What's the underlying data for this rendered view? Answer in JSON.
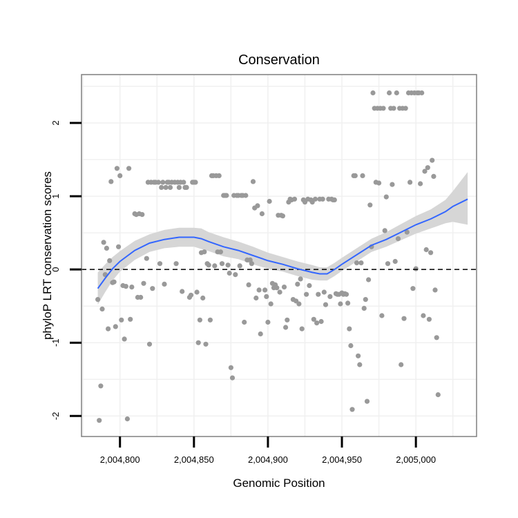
{
  "chart_data": {
    "type": "scatter",
    "title": "Conservation",
    "xlabel": "Genomic Position",
    "ylabel": "phyloP LRT conservation scores",
    "xlim": [
      2004774,
      2005041
    ],
    "ylim": [
      -2.28,
      2.66
    ],
    "x_ticks": [
      {
        "value": 2004800,
        "label": "2,004,800"
      },
      {
        "value": 2004850,
        "label": "2,004,850"
      },
      {
        "value": 2004900,
        "label": "2,004,900"
      },
      {
        "value": 2004950,
        "label": "2,004,950"
      },
      {
        "value": 2005000,
        "label": "2,005,000"
      }
    ],
    "y_ticks": [
      {
        "value": -2,
        "label": "-2"
      },
      {
        "value": -1,
        "label": "-1"
      },
      {
        "value": 0,
        "label": "0"
      },
      {
        "value": 1,
        "label": "1"
      },
      {
        "value": 2,
        "label": "2"
      }
    ],
    "grid": true,
    "reference_line": {
      "y": 0,
      "style": "dashed",
      "color": "#000000"
    },
    "points": [
      [
        2004785,
        -0.41
      ],
      [
        2004786,
        -2.06
      ],
      [
        2004787,
        -1.59
      ],
      [
        2004788,
        -0.54
      ],
      [
        2004789,
        0.37
      ],
      [
        2004790,
        -0.07
      ],
      [
        2004791,
        0.29
      ],
      [
        2004792,
        -0.81
      ],
      [
        2004793,
        0.12
      ],
      [
        2004794,
        1.2
      ],
      [
        2004795,
        -0.18
      ],
      [
        2004796,
        -0.17
      ],
      [
        2004797,
        -0.78
      ],
      [
        2004798,
        1.38
      ],
      [
        2004799,
        0.31
      ],
      [
        2004800,
        1.28
      ],
      [
        2004801,
        -0.69
      ],
      [
        2004802,
        -0.22
      ],
      [
        2004803,
        -0.95
      ],
      [
        2004804,
        -0.23
      ],
      [
        2004805,
        -2.04
      ],
      [
        2004806,
        1.38
      ],
      [
        2004807,
        -0.68
      ],
      [
        2004808,
        -0.24
      ],
      [
        2004810,
        0.76
      ],
      [
        2004811,
        0.75
      ],
      [
        2004812,
        -0.38
      ],
      [
        2004813,
        0.76
      ],
      [
        2004814,
        -0.38
      ],
      [
        2004815,
        0.75
      ],
      [
        2004816,
        -0.19
      ],
      [
        2004818,
        0.15
      ],
      [
        2004819,
        1.19
      ],
      [
        2004820,
        -1.02
      ],
      [
        2004821,
        1.19
      ],
      [
        2004822,
        -0.26
      ],
      [
        2004823,
        1.19
      ],
      [
        2004824,
        1.19
      ],
      [
        2004826,
        1.19
      ],
      [
        2004827,
        0.08
      ],
      [
        2004828,
        1.12
      ],
      [
        2004829,
        1.19
      ],
      [
        2004830,
        -0.2
      ],
      [
        2004831,
        1.12
      ],
      [
        2004832,
        1.19
      ],
      [
        2004833,
        1.19
      ],
      [
        2004834,
        1.12
      ],
      [
        2004835,
        1.19
      ],
      [
        2004837,
        1.19
      ],
      [
        2004838,
        0.08
      ],
      [
        2004839,
        1.19
      ],
      [
        2004840,
        1.12
      ],
      [
        2004841,
        1.19
      ],
      [
        2004842,
        -0.3
      ],
      [
        2004843,
        1.19
      ],
      [
        2004844,
        1.12
      ],
      [
        2004845,
        1.12
      ],
      [
        2004847,
        -0.38
      ],
      [
        2004848,
        -0.35
      ],
      [
        2004849,
        1.19
      ],
      [
        2004850,
        1.19
      ],
      [
        2004851,
        1.19
      ],
      [
        2004852,
        -0.31
      ],
      [
        2004853,
        -1.0
      ],
      [
        2004854,
        -0.69
      ],
      [
        2004855,
        0.23
      ],
      [
        2004856,
        -0.39
      ],
      [
        2004857,
        0.24
      ],
      [
        2004858,
        -1.02
      ],
      [
        2004859,
        0.08
      ],
      [
        2004860,
        0.06
      ],
      [
        2004861,
        -0.69
      ],
      [
        2004862,
        1.28
      ],
      [
        2004863,
        1.28
      ],
      [
        2004864,
        0.05
      ],
      [
        2004865,
        1.28
      ],
      [
        2004866,
        0.24
      ],
      [
        2004867,
        1.28
      ],
      [
        2004868,
        0.24
      ],
      [
        2004869,
        0.08
      ],
      [
        2004870,
        1.01
      ],
      [
        2004871,
        1.01
      ],
      [
        2004872,
        1.01
      ],
      [
        2004873,
        0.06
      ],
      [
        2004874,
        -0.05
      ],
      [
        2004875,
        -1.34
      ],
      [
        2004876,
        -1.48
      ],
      [
        2004877,
        1.01
      ],
      [
        2004878,
        -0.07
      ],
      [
        2004879,
        1.01
      ],
      [
        2004880,
        1.01
      ],
      [
        2004881,
        0.05
      ],
      [
        2004882,
        1.01
      ],
      [
        2004883,
        1.01
      ],
      [
        2004884,
        -0.72
      ],
      [
        2004885,
        1.01
      ],
      [
        2004886,
        0.13
      ],
      [
        2004887,
        -0.21
      ],
      [
        2004888,
        0.13
      ],
      [
        2004889,
        0.08
      ],
      [
        2004890,
        1.2
      ],
      [
        2004891,
        0.84
      ],
      [
        2004892,
        -0.39
      ],
      [
        2004893,
        0.87
      ],
      [
        2004894,
        -0.28
      ],
      [
        2004895,
        -0.88
      ],
      [
        2004896,
        0.76
      ],
      [
        2004898,
        -0.28
      ],
      [
        2004899,
        -0.37
      ],
      [
        2004900,
        -0.72
      ],
      [
        2004901,
        0.93
      ],
      [
        2004902,
        -0.47
      ],
      [
        2004903,
        -0.19
      ],
      [
        2004904,
        -0.25
      ],
      [
        2004905,
        -0.21
      ],
      [
        2004906,
        -0.25
      ],
      [
        2004907,
        0.74
      ],
      [
        2004908,
        -0.31
      ],
      [
        2004909,
        0.74
      ],
      [
        2004910,
        0.73
      ],
      [
        2004911,
        -0.24
      ],
      [
        2004912,
        -0.79
      ],
      [
        2004913,
        -0.69
      ],
      [
        2004914,
        0.92
      ],
      [
        2004915,
        0.96
      ],
      [
        2004916,
        0.95
      ],
      [
        2004917,
        -0.41
      ],
      [
        2004918,
        0.96
      ],
      [
        2004919,
        -0.43
      ],
      [
        2004920,
        -0.2
      ],
      [
        2004921,
        -0.47
      ],
      [
        2004922,
        -0.13
      ],
      [
        2004923,
        -0.81
      ],
      [
        2004924,
        0.95
      ],
      [
        2004925,
        0.92
      ],
      [
        2004926,
        -0.34
      ],
      [
        2004927,
        0.96
      ],
      [
        2004928,
        -0.22
      ],
      [
        2004929,
        0.95
      ],
      [
        2004930,
        0.92
      ],
      [
        2004931,
        -0.68
      ],
      [
        2004932,
        0.96
      ],
      [
        2004933,
        -0.73
      ],
      [
        2004934,
        -0.34
      ],
      [
        2004935,
        0.96
      ],
      [
        2004936,
        -0.71
      ],
      [
        2004937,
        0.96
      ],
      [
        2004938,
        -0.31
      ],
      [
        2004939,
        -0.48
      ],
      [
        2004941,
        0.96
      ],
      [
        2004942,
        -0.37
      ],
      [
        2004943,
        0.96
      ],
      [
        2004944,
        0.95
      ],
      [
        2004945,
        0.95
      ],
      [
        2004946,
        -0.33
      ],
      [
        2004947,
        -0.34
      ],
      [
        2004948,
        -0.34
      ],
      [
        2004949,
        -0.47
      ],
      [
        2004950,
        -0.32
      ],
      [
        2004951,
        -0.34
      ],
      [
        2004952,
        -0.33
      ],
      [
        2004953,
        -0.34
      ],
      [
        2004954,
        -0.46
      ],
      [
        2004955,
        -0.81
      ],
      [
        2004956,
        -1.04
      ],
      [
        2004957,
        -1.91
      ],
      [
        2004958,
        1.28
      ],
      [
        2004959,
        1.28
      ],
      [
        2004960,
        0.09
      ],
      [
        2004961,
        -1.18
      ],
      [
        2004962,
        -1.3
      ],
      [
        2004963,
        0.09
      ],
      [
        2004964,
        1.28
      ],
      [
        2004965,
        -0.53
      ],
      [
        2004966,
        -0.41
      ],
      [
        2004967,
        -1.8
      ],
      [
        2004968,
        -0.14
      ],
      [
        2004969,
        0.88
      ],
      [
        2004970,
        0.31
      ],
      [
        2004971,
        2.41
      ],
      [
        2004972,
        2.2
      ],
      [
        2004973,
        1.19
      ],
      [
        2004974,
        2.2
      ],
      [
        2004975,
        1.18
      ],
      [
        2004976,
        2.2
      ],
      [
        2004977,
        -0.63
      ],
      [
        2004978,
        2.2
      ],
      [
        2004979,
        0.53
      ],
      [
        2004980,
        0.99
      ],
      [
        2004981,
        0.08
      ],
      [
        2004982,
        2.41
      ],
      [
        2004983,
        2.2
      ],
      [
        2004984,
        1.16
      ],
      [
        2004985,
        2.2
      ],
      [
        2004986,
        0.11
      ],
      [
        2004987,
        2.41
      ],
      [
        2004988,
        0.42
      ],
      [
        2004989,
        2.2
      ],
      [
        2004990,
        -1.3
      ],
      [
        2004991,
        2.2
      ],
      [
        2004992,
        -0.67
      ],
      [
        2004993,
        2.2
      ],
      [
        2004994,
        0.51
      ],
      [
        2004995,
        2.41
      ],
      [
        2004996,
        1.19
      ],
      [
        2004997,
        2.41
      ],
      [
        2004998,
        -0.26
      ],
      [
        2004999,
        2.41
      ],
      [
        2005000,
        0.01
      ],
      [
        2005001,
        2.41
      ],
      [
        2005002,
        2.41
      ],
      [
        2005003,
        1.17
      ],
      [
        2005004,
        2.41
      ],
      [
        2005005,
        -0.63
      ],
      [
        2005006,
        1.34
      ],
      [
        2005007,
        0.27
      ],
      [
        2005008,
        1.39
      ],
      [
        2005009,
        -0.68
      ],
      [
        2005010,
        0.23
      ],
      [
        2005011,
        1.49
      ],
      [
        2005012,
        1.27
      ],
      [
        2005013,
        -0.28
      ],
      [
        2005014,
        -0.93
      ],
      [
        2005015,
        -1.71
      ]
    ],
    "smooth": {
      "color": "#3366ff",
      "band_color": "#d6d6d6",
      "x": [
        2004785,
        2004790,
        2004795,
        2004800,
        2004810,
        2004820,
        2004830,
        2004840,
        2004850,
        2004855,
        2004860,
        2004870,
        2004880,
        2004890,
        2004900,
        2004910,
        2004920,
        2004930,
        2004935,
        2004940,
        2004945,
        2004950,
        2004960,
        2004970,
        2004980,
        2004990,
        2005000,
        2005010,
        2005020,
        2005025,
        2005035
      ],
      "y": [
        -0.26,
        -0.12,
        0.01,
        0.11,
        0.26,
        0.36,
        0.41,
        0.44,
        0.44,
        0.42,
        0.38,
        0.31,
        0.26,
        0.19,
        0.12,
        0.07,
        0.01,
        -0.04,
        -0.06,
        -0.06,
        0.0,
        0.07,
        0.2,
        0.33,
        0.41,
        0.51,
        0.61,
        0.69,
        0.79,
        0.86,
        0.96
      ],
      "upper": [
        -0.04,
        0.07,
        0.17,
        0.25,
        0.39,
        0.48,
        0.54,
        0.57,
        0.57,
        0.56,
        0.51,
        0.44,
        0.38,
        0.31,
        0.23,
        0.17,
        0.11,
        0.06,
        0.03,
        0.03,
        0.09,
        0.16,
        0.29,
        0.42,
        0.51,
        0.62,
        0.73,
        0.82,
        0.95,
        1.07,
        1.33
      ],
      "lower": [
        -0.48,
        -0.31,
        -0.15,
        -0.03,
        0.13,
        0.24,
        0.29,
        0.31,
        0.31,
        0.28,
        0.25,
        0.18,
        0.14,
        0.07,
        0.01,
        -0.03,
        -0.09,
        -0.14,
        -0.15,
        -0.15,
        -0.09,
        -0.02,
        0.11,
        0.24,
        0.31,
        0.4,
        0.49,
        0.56,
        0.63,
        0.65,
        0.61
      ]
    }
  }
}
